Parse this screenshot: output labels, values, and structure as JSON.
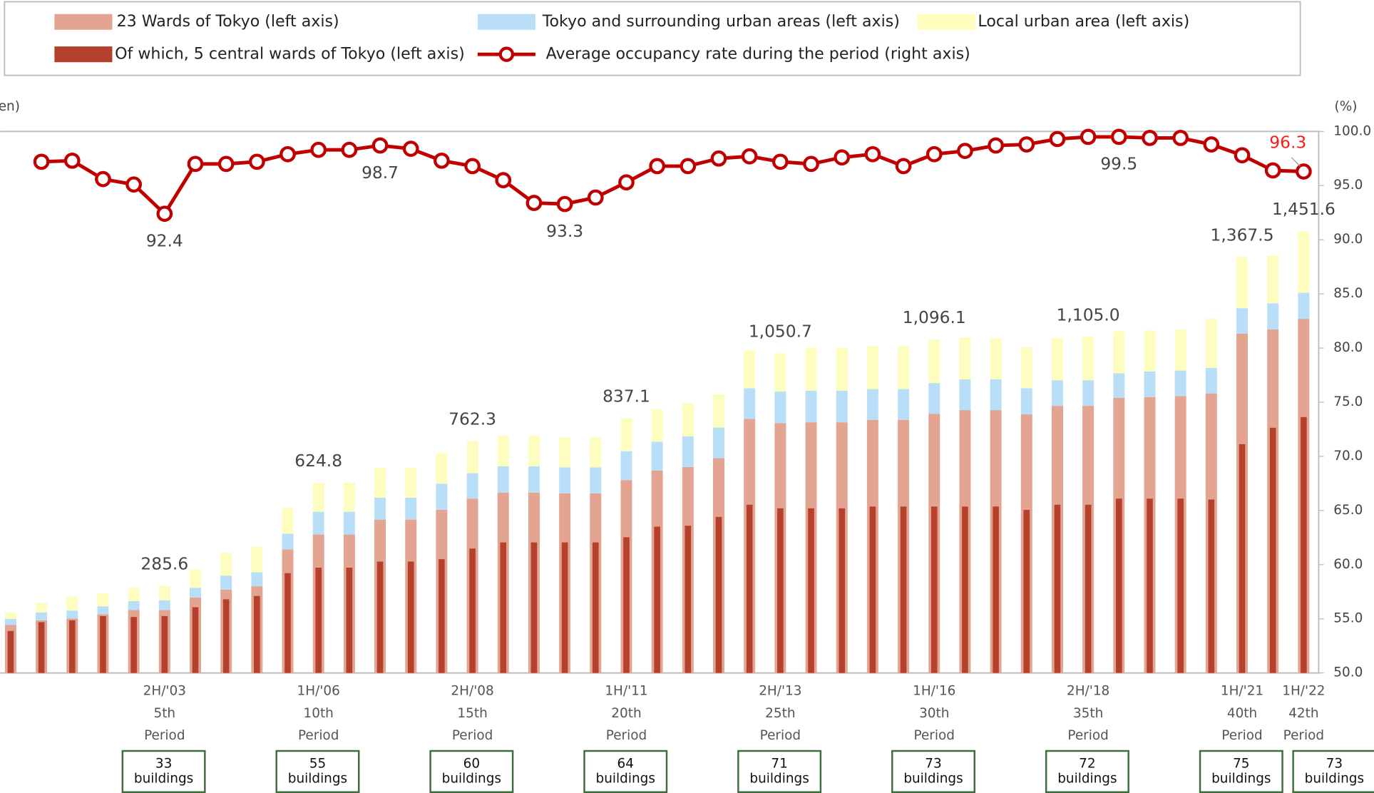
{
  "chart_data": {
    "type": "bar",
    "y_label": "en)",
    "y2_label": "(%)",
    "ylim": [
      0,
      1780
    ],
    "y2lim": [
      50,
      100
    ],
    "y2ticks": [
      {
        "value": 50,
        "label": "50.0"
      },
      {
        "value": 55,
        "label": "55.0"
      },
      {
        "value": 60,
        "label": "60.0"
      },
      {
        "value": 65,
        "label": "65.0"
      },
      {
        "value": 70,
        "label": "70.0"
      },
      {
        "value": 75,
        "label": "75.0"
      },
      {
        "value": 80,
        "label": "80.0"
      },
      {
        "value": 85,
        "label": "85.0"
      },
      {
        "value": 90,
        "label": "90.0"
      },
      {
        "value": 95,
        "label": "95.0"
      },
      {
        "value": 100,
        "label": "100.0"
      }
    ],
    "categories": [
      null,
      null,
      null,
      null,
      null,
      [
        "2H/'03",
        "5th",
        "Period"
      ],
      null,
      null,
      null,
      null,
      [
        "1H/'06",
        "10th",
        "Period"
      ],
      null,
      null,
      null,
      null,
      [
        "2H/'08",
        "15th",
        "Period"
      ],
      null,
      null,
      null,
      null,
      [
        "1H/'11",
        "20th",
        "Period"
      ],
      null,
      null,
      null,
      null,
      [
        "2H/'13",
        "25th",
        "Period"
      ],
      null,
      null,
      null,
      null,
      [
        "1H/'16",
        "30th",
        "Period"
      ],
      null,
      null,
      null,
      null,
      [
        "2H/'18",
        "35th",
        "Period"
      ],
      null,
      null,
      null,
      null,
      [
        "1H/'21",
        "40th",
        "Period"
      ],
      null,
      [
        "1H/'22",
        "42th",
        "Period"
      ]
    ],
    "buildings": [
      null,
      null,
      null,
      null,
      null,
      [
        "33",
        "buildings"
      ],
      null,
      null,
      null,
      null,
      [
        "55",
        "buildings"
      ],
      null,
      null,
      null,
      null,
      [
        "60",
        "buildings"
      ],
      null,
      null,
      null,
      null,
      [
        "64",
        "buildings"
      ],
      null,
      null,
      null,
      null,
      [
        "71",
        "buildings"
      ],
      null,
      null,
      null,
      null,
      [
        "73",
        "buildings"
      ],
      null,
      null,
      null,
      null,
      [
        "72",
        "buildings"
      ],
      null,
      null,
      null,
      null,
      [
        "75",
        "buildings"
      ],
      null,
      [
        "73",
        "buildings"
      ]
    ],
    "total_labels": [
      null,
      null,
      null,
      null,
      null,
      "285.6",
      null,
      null,
      null,
      null,
      "624.8",
      null,
      null,
      null,
      null,
      "762.3",
      null,
      null,
      null,
      null,
      "837.1",
      null,
      null,
      null,
      null,
      "1,050.7",
      null,
      null,
      null,
      null,
      "1,096.1",
      null,
      null,
      null,
      null,
      "1,105.0",
      null,
      null,
      null,
      null,
      "1,367.5",
      null,
      "1,451.6"
    ],
    "series": [
      {
        "name": "23 Wards of Tokyo (left axis)",
        "color": "#e3a492",
        "values": [
          158,
          173,
          179,
          193,
          207,
          207,
          248,
          274,
          285,
          406,
          455,
          455,
          504,
          504,
          536,
          573,
          593,
          593,
          590,
          590,
          634,
          665,
          677,
          706,
          835,
          821,
          824,
          824,
          832,
          832,
          852,
          864,
          864,
          850,
          878,
          878,
          904,
          907,
          910,
          919,
          1115,
          1129,
          1164
        ]
      },
      {
        "name": "Tokyo and surrounding urban areas (left axis)",
        "color": "#b9dff8",
        "values": [
          20,
          26,
          26,
          26,
          29,
          32,
          32,
          46,
          46,
          52,
          75,
          75,
          72,
          72,
          86,
          84,
          86,
          86,
          86,
          86,
          95,
          95,
          101,
          101,
          101,
          104,
          104,
          104,
          101,
          101,
          101,
          101,
          101,
          86,
          84,
          84,
          81,
          84,
          84,
          84,
          84,
          86,
          86
        ]
      },
      {
        "name": "Local urban area (left axis)",
        "color": "#fdfdc0",
        "values": [
          20,
          32,
          46,
          43,
          43,
          47,
          60,
          75,
          84,
          84,
          95,
          95,
          98,
          98,
          101,
          105,
          101,
          101,
          98,
          98,
          108,
          107,
          109,
          109,
          124,
          126,
          141,
          141,
          141,
          141,
          143,
          138,
          135,
          135,
          138,
          143,
          138,
          135,
          135,
          161,
          168,
          156,
          202
        ]
      },
      {
        "name": "Of which, 5 central wards of Tokyo (left axis)",
        "color": "#b5412c",
        "overlay": true,
        "values": [
          138,
          167,
          173,
          187,
          184,
          187,
          216,
          242,
          253,
          328,
          346,
          346,
          366,
          366,
          374,
          409,
          429,
          429,
          429,
          429,
          446,
          481,
          484,
          513,
          553,
          541,
          541,
          541,
          547,
          547,
          547,
          547,
          547,
          536,
          553,
          553,
          573,
          573,
          573,
          570,
          752,
          806,
          841
        ]
      },
      {
        "name": "Average occupancy rate during the period (right axis)",
        "color": "#c00000",
        "type": "line",
        "axis": "y2",
        "values": [
          null,
          97.2,
          97.3,
          95.6,
          95.1,
          92.4,
          97.0,
          97.0,
          97.2,
          97.9,
          98.3,
          98.3,
          98.7,
          98.4,
          97.3,
          96.8,
          95.5,
          93.4,
          93.3,
          93.9,
          95.3,
          96.8,
          96.8,
          97.5,
          97.7,
          97.2,
          97.0,
          97.6,
          97.9,
          96.8,
          97.9,
          98.2,
          98.7,
          98.8,
          99.3,
          99.5,
          99.5,
          99.4,
          99.4,
          98.8,
          97.8,
          96.4,
          96.3
        ],
        "value_labels": [
          null,
          null,
          null,
          null,
          null,
          "92.4",
          null,
          null,
          null,
          null,
          null,
          null,
          "98.7",
          null,
          null,
          null,
          null,
          null,
          "93.3",
          null,
          null,
          null,
          null,
          null,
          null,
          null,
          null,
          null,
          null,
          null,
          null,
          null,
          null,
          null,
          null,
          null,
          "99.5",
          null,
          null,
          null,
          null,
          null,
          "96.3"
        ]
      }
    ]
  }
}
